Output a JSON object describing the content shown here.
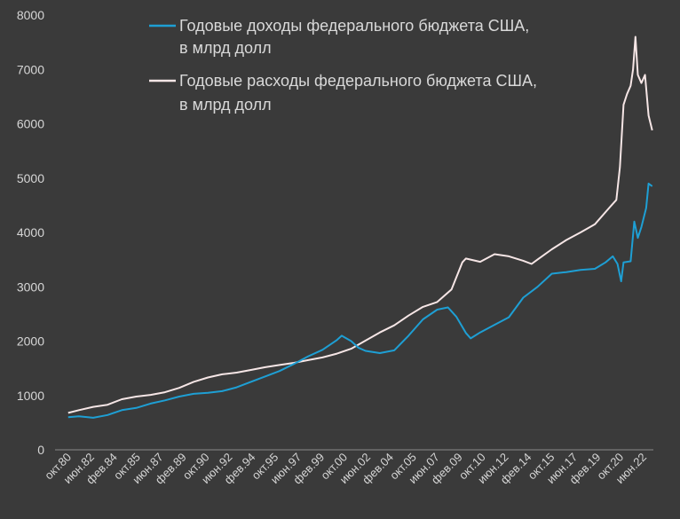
{
  "chart_data": {
    "type": "line",
    "ylim": [
      0,
      8000
    ],
    "y_ticks": [
      "0",
      "1000",
      "2000",
      "3000",
      "4000",
      "5000",
      "6000",
      "7000",
      "8000"
    ],
    "x_tick_labels": [
      "окт.80",
      "июн.82",
      "фев.84",
      "окт.85",
      "июн.87",
      "фев.89",
      "окт.90",
      "июн.92",
      "фев.94",
      "окт.95",
      "июн.97",
      "фев.99",
      "окт.00",
      "июн.02",
      "фев.04",
      "окт.05",
      "июн.07",
      "фев.09",
      "окт.10",
      "июн.12",
      "фев.14",
      "окт.15",
      "июн.17",
      "фев.19",
      "окт.20",
      "июн.22"
    ],
    "x_range": [
      "1980-10",
      "2022-07"
    ],
    "grid": false,
    "legend_position": "top",
    "series": [
      {
        "name": "Годовые доходы федерального бюджета США, в млрд долл",
        "color": "#1e9fd4",
        "points": [
          [
            "1981-09",
            600
          ],
          [
            "1982-06",
            615
          ],
          [
            "1983-06",
            590
          ],
          [
            "1984-06",
            640
          ],
          [
            "1985-06",
            730
          ],
          [
            "1986-06",
            770
          ],
          [
            "1987-06",
            850
          ],
          [
            "1988-06",
            910
          ],
          [
            "1989-06",
            980
          ],
          [
            "1990-06",
            1030
          ],
          [
            "1991-06",
            1050
          ],
          [
            "1992-06",
            1080
          ],
          [
            "1993-06",
            1150
          ],
          [
            "1994-06",
            1250
          ],
          [
            "1995-06",
            1350
          ],
          [
            "1996-06",
            1450
          ],
          [
            "1997-06",
            1580
          ],
          [
            "1998-06",
            1720
          ],
          [
            "1999-06",
            1840
          ],
          [
            "2000-06",
            2020
          ],
          [
            "2000-10",
            2100
          ],
          [
            "2001-06",
            2000
          ],
          [
            "2001-12",
            1880
          ],
          [
            "2002-06",
            1820
          ],
          [
            "2003-06",
            1780
          ],
          [
            "2004-06",
            1830
          ],
          [
            "2005-06",
            2100
          ],
          [
            "2006-06",
            2400
          ],
          [
            "2007-06",
            2580
          ],
          [
            "2008-03",
            2620
          ],
          [
            "2008-10",
            2450
          ],
          [
            "2009-06",
            2150
          ],
          [
            "2009-10",
            2050
          ],
          [
            "2010-06",
            2160
          ],
          [
            "2011-06",
            2300
          ],
          [
            "2012-06",
            2440
          ],
          [
            "2013-06",
            2800
          ],
          [
            "2014-06",
            3000
          ],
          [
            "2015-06",
            3240
          ],
          [
            "2016-06",
            3270
          ],
          [
            "2017-06",
            3310
          ],
          [
            "2018-06",
            3330
          ],
          [
            "2019-03",
            3450
          ],
          [
            "2019-09",
            3560
          ],
          [
            "2020-01",
            3420
          ],
          [
            "2020-04",
            3100
          ],
          [
            "2020-06",
            3450
          ],
          [
            "2020-12",
            3470
          ],
          [
            "2021-03",
            4200
          ],
          [
            "2021-06",
            3900
          ],
          [
            "2021-09",
            4100
          ],
          [
            "2022-01",
            4450
          ],
          [
            "2022-03",
            4900
          ],
          [
            "2022-06",
            4850
          ]
        ]
      },
      {
        "name": "Годовые расходы федерального бюджета США, в млрд долл",
        "color": "#f6e6e6",
        "points": [
          [
            "1981-09",
            680
          ],
          [
            "1982-06",
            730
          ],
          [
            "1983-06",
            790
          ],
          [
            "1984-06",
            830
          ],
          [
            "1985-06",
            930
          ],
          [
            "1986-06",
            980
          ],
          [
            "1987-06",
            1010
          ],
          [
            "1988-06",
            1060
          ],
          [
            "1989-06",
            1140
          ],
          [
            "1990-06",
            1250
          ],
          [
            "1991-06",
            1330
          ],
          [
            "1992-06",
            1390
          ],
          [
            "1993-06",
            1420
          ],
          [
            "1994-06",
            1470
          ],
          [
            "1995-06",
            1520
          ],
          [
            "1996-06",
            1560
          ],
          [
            "1997-06",
            1600
          ],
          [
            "1998-06",
            1650
          ],
          [
            "1999-06",
            1700
          ],
          [
            "2000-06",
            1770
          ],
          [
            "2001-06",
            1860
          ],
          [
            "2002-06",
            2010
          ],
          [
            "2003-06",
            2160
          ],
          [
            "2004-06",
            2290
          ],
          [
            "2005-06",
            2470
          ],
          [
            "2006-06",
            2630
          ],
          [
            "2007-06",
            2720
          ],
          [
            "2008-06",
            2950
          ],
          [
            "2009-03",
            3450
          ],
          [
            "2009-06",
            3520
          ],
          [
            "2010-06",
            3460
          ],
          [
            "2011-06",
            3600
          ],
          [
            "2012-06",
            3560
          ],
          [
            "2013-06",
            3480
          ],
          [
            "2014-01",
            3420
          ],
          [
            "2014-06",
            3500
          ],
          [
            "2015-06",
            3690
          ],
          [
            "2016-06",
            3860
          ],
          [
            "2017-06",
            4000
          ],
          [
            "2018-06",
            4150
          ],
          [
            "2019-06",
            4450
          ],
          [
            "2019-12",
            4600
          ],
          [
            "2020-03",
            5200
          ],
          [
            "2020-06",
            6350
          ],
          [
            "2020-09",
            6550
          ],
          [
            "2020-12",
            6700
          ],
          [
            "2021-02",
            7000
          ],
          [
            "2021-04",
            7600
          ],
          [
            "2021-06",
            6900
          ],
          [
            "2021-09",
            6750
          ],
          [
            "2021-12",
            6900
          ],
          [
            "2022-03",
            6150
          ],
          [
            "2022-06",
            5880
          ]
        ]
      }
    ]
  }
}
